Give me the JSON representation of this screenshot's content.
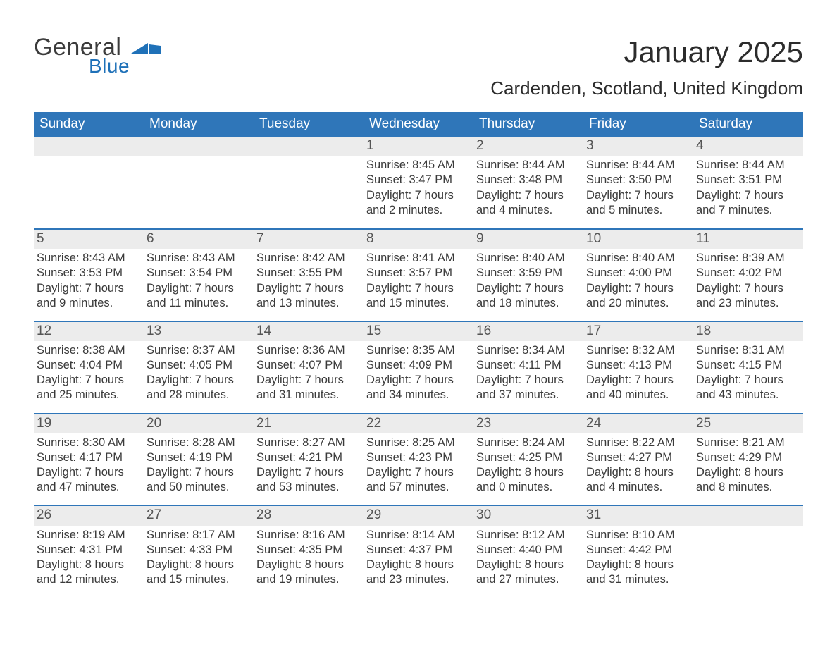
{
  "brand": {
    "general": "General",
    "blue": "Blue",
    "flag_color": "#1f71b8"
  },
  "title": "January 2025",
  "location": "Cardenden, Scotland, United Kingdom",
  "colors": {
    "header_bg": "#2f76b9",
    "header_text": "#ffffff",
    "daynum_bg": "#ececec",
    "daynum_text": "#555555",
    "row_border": "#2f76b9",
    "body_text": "#3a3a3a",
    "page_bg": "#ffffff"
  },
  "fonts": {
    "title_size_pt": 32,
    "location_size_pt": 20,
    "weekday_size_pt": 14,
    "cell_size_pt": 12
  },
  "weekdays": [
    "Sunday",
    "Monday",
    "Tuesday",
    "Wednesday",
    "Thursday",
    "Friday",
    "Saturday"
  ],
  "weeks": [
    [
      {
        "n": "",
        "sunrise": "",
        "sunset": "",
        "daylight": ""
      },
      {
        "n": "",
        "sunrise": "",
        "sunset": "",
        "daylight": ""
      },
      {
        "n": "",
        "sunrise": "",
        "sunset": "",
        "daylight": ""
      },
      {
        "n": "1",
        "sunrise": "Sunrise: 8:45 AM",
        "sunset": "Sunset: 3:47 PM",
        "daylight": "Daylight: 7 hours and 2 minutes."
      },
      {
        "n": "2",
        "sunrise": "Sunrise: 8:44 AM",
        "sunset": "Sunset: 3:48 PM",
        "daylight": "Daylight: 7 hours and 4 minutes."
      },
      {
        "n": "3",
        "sunrise": "Sunrise: 8:44 AM",
        "sunset": "Sunset: 3:50 PM",
        "daylight": "Daylight: 7 hours and 5 minutes."
      },
      {
        "n": "4",
        "sunrise": "Sunrise: 8:44 AM",
        "sunset": "Sunset: 3:51 PM",
        "daylight": "Daylight: 7 hours and 7 minutes."
      }
    ],
    [
      {
        "n": "5",
        "sunrise": "Sunrise: 8:43 AM",
        "sunset": "Sunset: 3:53 PM",
        "daylight": "Daylight: 7 hours and 9 minutes."
      },
      {
        "n": "6",
        "sunrise": "Sunrise: 8:43 AM",
        "sunset": "Sunset: 3:54 PM",
        "daylight": "Daylight: 7 hours and 11 minutes."
      },
      {
        "n": "7",
        "sunrise": "Sunrise: 8:42 AM",
        "sunset": "Sunset: 3:55 PM",
        "daylight": "Daylight: 7 hours and 13 minutes."
      },
      {
        "n": "8",
        "sunrise": "Sunrise: 8:41 AM",
        "sunset": "Sunset: 3:57 PM",
        "daylight": "Daylight: 7 hours and 15 minutes."
      },
      {
        "n": "9",
        "sunrise": "Sunrise: 8:40 AM",
        "sunset": "Sunset: 3:59 PM",
        "daylight": "Daylight: 7 hours and 18 minutes."
      },
      {
        "n": "10",
        "sunrise": "Sunrise: 8:40 AM",
        "sunset": "Sunset: 4:00 PM",
        "daylight": "Daylight: 7 hours and 20 minutes."
      },
      {
        "n": "11",
        "sunrise": "Sunrise: 8:39 AM",
        "sunset": "Sunset: 4:02 PM",
        "daylight": "Daylight: 7 hours and 23 minutes."
      }
    ],
    [
      {
        "n": "12",
        "sunrise": "Sunrise: 8:38 AM",
        "sunset": "Sunset: 4:04 PM",
        "daylight": "Daylight: 7 hours and 25 minutes."
      },
      {
        "n": "13",
        "sunrise": "Sunrise: 8:37 AM",
        "sunset": "Sunset: 4:05 PM",
        "daylight": "Daylight: 7 hours and 28 minutes."
      },
      {
        "n": "14",
        "sunrise": "Sunrise: 8:36 AM",
        "sunset": "Sunset: 4:07 PM",
        "daylight": "Daylight: 7 hours and 31 minutes."
      },
      {
        "n": "15",
        "sunrise": "Sunrise: 8:35 AM",
        "sunset": "Sunset: 4:09 PM",
        "daylight": "Daylight: 7 hours and 34 minutes."
      },
      {
        "n": "16",
        "sunrise": "Sunrise: 8:34 AM",
        "sunset": "Sunset: 4:11 PM",
        "daylight": "Daylight: 7 hours and 37 minutes."
      },
      {
        "n": "17",
        "sunrise": "Sunrise: 8:32 AM",
        "sunset": "Sunset: 4:13 PM",
        "daylight": "Daylight: 7 hours and 40 minutes."
      },
      {
        "n": "18",
        "sunrise": "Sunrise: 8:31 AM",
        "sunset": "Sunset: 4:15 PM",
        "daylight": "Daylight: 7 hours and 43 minutes."
      }
    ],
    [
      {
        "n": "19",
        "sunrise": "Sunrise: 8:30 AM",
        "sunset": "Sunset: 4:17 PM",
        "daylight": "Daylight: 7 hours and 47 minutes."
      },
      {
        "n": "20",
        "sunrise": "Sunrise: 8:28 AM",
        "sunset": "Sunset: 4:19 PM",
        "daylight": "Daylight: 7 hours and 50 minutes."
      },
      {
        "n": "21",
        "sunrise": "Sunrise: 8:27 AM",
        "sunset": "Sunset: 4:21 PM",
        "daylight": "Daylight: 7 hours and 53 minutes."
      },
      {
        "n": "22",
        "sunrise": "Sunrise: 8:25 AM",
        "sunset": "Sunset: 4:23 PM",
        "daylight": "Daylight: 7 hours and 57 minutes."
      },
      {
        "n": "23",
        "sunrise": "Sunrise: 8:24 AM",
        "sunset": "Sunset: 4:25 PM",
        "daylight": "Daylight: 8 hours and 0 minutes."
      },
      {
        "n": "24",
        "sunrise": "Sunrise: 8:22 AM",
        "sunset": "Sunset: 4:27 PM",
        "daylight": "Daylight: 8 hours and 4 minutes."
      },
      {
        "n": "25",
        "sunrise": "Sunrise: 8:21 AM",
        "sunset": "Sunset: 4:29 PM",
        "daylight": "Daylight: 8 hours and 8 minutes."
      }
    ],
    [
      {
        "n": "26",
        "sunrise": "Sunrise: 8:19 AM",
        "sunset": "Sunset: 4:31 PM",
        "daylight": "Daylight: 8 hours and 12 minutes."
      },
      {
        "n": "27",
        "sunrise": "Sunrise: 8:17 AM",
        "sunset": "Sunset: 4:33 PM",
        "daylight": "Daylight: 8 hours and 15 minutes."
      },
      {
        "n": "28",
        "sunrise": "Sunrise: 8:16 AM",
        "sunset": "Sunset: 4:35 PM",
        "daylight": "Daylight: 8 hours and 19 minutes."
      },
      {
        "n": "29",
        "sunrise": "Sunrise: 8:14 AM",
        "sunset": "Sunset: 4:37 PM",
        "daylight": "Daylight: 8 hours and 23 minutes."
      },
      {
        "n": "30",
        "sunrise": "Sunrise: 8:12 AM",
        "sunset": "Sunset: 4:40 PM",
        "daylight": "Daylight: 8 hours and 27 minutes."
      },
      {
        "n": "31",
        "sunrise": "Sunrise: 8:10 AM",
        "sunset": "Sunset: 4:42 PM",
        "daylight": "Daylight: 8 hours and 31 minutes."
      },
      {
        "n": "",
        "sunrise": "",
        "sunset": "",
        "daylight": ""
      }
    ]
  ]
}
